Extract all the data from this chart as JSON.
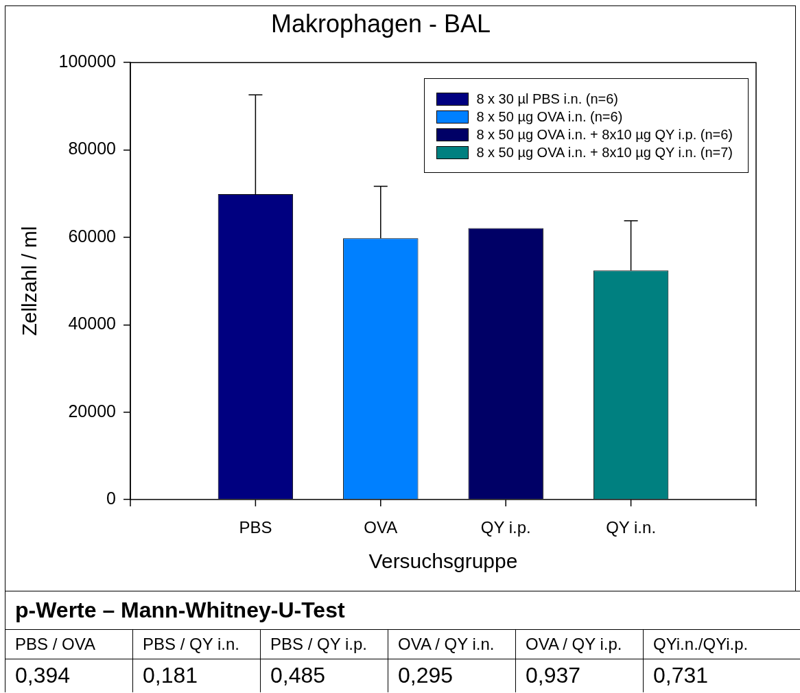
{
  "chart_data": {
    "type": "bar",
    "title": "Makrophagen - BAL",
    "xlabel": "Versuchsgruppe",
    "ylabel": "Zellzahl / ml",
    "categories": [
      "PBS",
      "OVA",
      "QY i.p.",
      "QY i.n."
    ],
    "series": [
      {
        "name": "8 x 30 µl PBS i.n. (n=6)",
        "color": "#000080",
        "values": [
          69900,
          null,
          null,
          null
        ],
        "errors": [
          [
            69900,
            92600
          ],
          null,
          null,
          null
        ]
      },
      {
        "name": "8 x 50 µg OVA i.n. (n=6)",
        "color": "#0080ff",
        "values": [
          null,
          59800,
          null,
          null
        ],
        "errors": [
          null,
          [
            59800,
            71700
          ],
          null,
          null
        ]
      },
      {
        "name": "8 x 50 µg OVA i.n. + 8x10 µg QY i.p. (n=6)",
        "color": "#000066",
        "values": [
          null,
          null,
          62100,
          null
        ],
        "errors": [
          null,
          null,
          null,
          null
        ]
      },
      {
        "name": "8 x 50 µg OVA i.n. + 8x10 µg QY i.n. (n=7)",
        "color": "#008080",
        "values": [
          null,
          null,
          null,
          52400
        ],
        "errors": [
          null,
          null,
          null,
          [
            52400,
            63800
          ]
        ]
      }
    ],
    "ylim": [
      0,
      100000
    ],
    "yticks": [
      0,
      20000,
      40000,
      60000,
      80000,
      100000
    ],
    "grid": false,
    "legend": "top right",
    "annotations": [
      "p-Werte – Mann-Whitney-U-Test",
      "PBS / OVA",
      "PBS / QY i.n.",
      "PBS / QY i.p.",
      "OVA / QY i.n.",
      "OVA / QY i.p.",
      "QYi.n./QYi.p.",
      "0,394",
      "0,181",
      "0,485",
      "0,295",
      "0,937",
      "0,731"
    ]
  }
}
